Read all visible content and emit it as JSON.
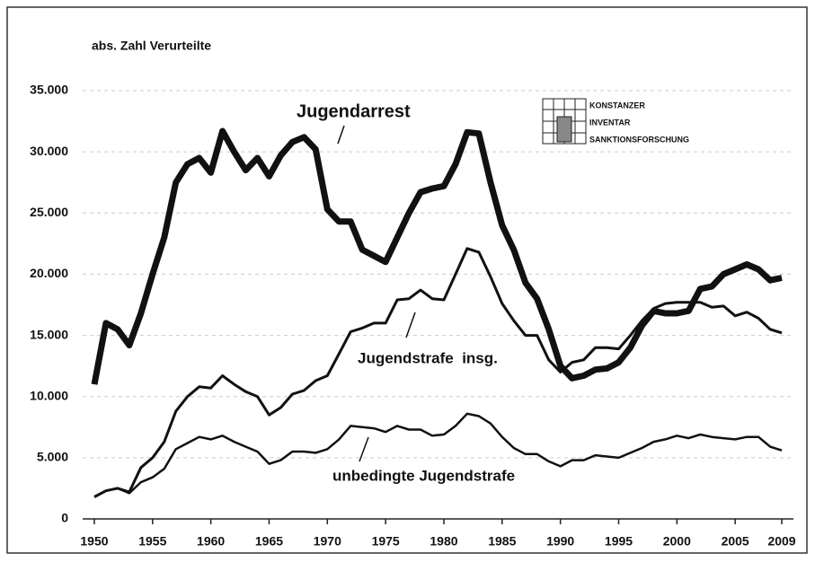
{
  "chart_data": {
    "type": "line",
    "y_label": "abs. Zahl Verurteilte",
    "logo": [
      "Konstanzer",
      "Inventar",
      "Sanktionsforschung"
    ],
    "x": [
      1950,
      1951,
      1952,
      1953,
      1954,
      1955,
      1956,
      1957,
      1958,
      1959,
      1960,
      1961,
      1962,
      1963,
      1964,
      1965,
      1966,
      1967,
      1968,
      1969,
      1970,
      1971,
      1972,
      1973,
      1974,
      1975,
      1976,
      1977,
      1978,
      1979,
      1980,
      1981,
      1982,
      1983,
      1984,
      1985,
      1986,
      1987,
      1988,
      1989,
      1990,
      1991,
      1992,
      1993,
      1994,
      1995,
      1996,
      1997,
      1998,
      1999,
      2000,
      2001,
      2002,
      2003,
      2004,
      2005,
      2006,
      2007,
      2008,
      2009
    ],
    "series": [
      {
        "name": "Jugendarrest",
        "color": "#111111",
        "values": [
          11000,
          16000,
          15500,
          14200,
          16800,
          20000,
          23000,
          27500,
          29000,
          29500,
          28300,
          31700,
          30000,
          28500,
          29500,
          28000,
          29700,
          30800,
          31200,
          30200,
          25300,
          24300,
          24300,
          22000,
          21500,
          21000,
          23000,
          25000,
          26700,
          27000,
          27200,
          29000,
          31600,
          31500,
          27500,
          24000,
          22000,
          19300,
          18000,
          15500,
          12500,
          11500,
          11700,
          12200,
          12300,
          12800,
          14000,
          15800,
          17000,
          16800,
          16800,
          17000,
          18800,
          19000,
          20000,
          20400,
          20800,
          20400,
          19500,
          19700
        ]
      },
      {
        "name": "Jugendstrafe  insg.",
        "color": "#111111",
        "values": [
          1800,
          2300,
          2500,
          2200,
          4200,
          5000,
          6300,
          8800,
          10000,
          10800,
          10700,
          11700,
          11000,
          10400,
          10000,
          8500,
          9100,
          10200,
          10500,
          11300,
          11700,
          13500,
          15300,
          15600,
          16000,
          16000,
          17900,
          18000,
          18700,
          18000,
          17900,
          20000,
          22100,
          21800,
          19800,
          17600,
          16200,
          15000,
          15000,
          13000,
          12000,
          12800,
          13000,
          14000,
          14000,
          13900,
          15000,
          16200,
          17200,
          17600,
          17700,
          17700,
          17700,
          17300,
          17400,
          16600,
          16900,
          16400,
          15500,
          15200
        ]
      },
      {
        "name": "unbedingte Jugendstrafe",
        "color": "#111111",
        "values": [
          1800,
          2300,
          2500,
          2100,
          3000,
          3400,
          4100,
          5700,
          6200,
          6700,
          6500,
          6800,
          6300,
          5900,
          5500,
          4500,
          4800,
          5500,
          5500,
          5400,
          5700,
          6500,
          7600,
          7500,
          7400,
          7100,
          7600,
          7300,
          7300,
          6800,
          6900,
          7600,
          8600,
          8400,
          7800,
          6700,
          5800,
          5300,
          5300,
          4700,
          4300,
          4800,
          4800,
          5200,
          5100,
          5000,
          5400,
          5800,
          6300,
          6500,
          6800,
          6600,
          6900,
          6700,
          6600,
          6500,
          6700,
          6700,
          5900,
          5600
        ]
      }
    ],
    "xlim": [
      1949,
      2010
    ],
    "xticks": [
      1950,
      1955,
      1960,
      1965,
      1970,
      1975,
      1980,
      1985,
      1990,
      1995,
      2000,
      2005,
      2009
    ],
    "ylim": [
      0,
      35000
    ],
    "yticks": [
      0,
      {
        "value": 5000,
        "label": "5.000"
      },
      {
        "value": 10000,
        "label": "10.000"
      },
      {
        "value": 15000,
        "label": "15.000"
      },
      {
        "value": 20000,
        "label": "20.000"
      },
      {
        "value": 25000,
        "label": "25.000"
      },
      {
        "value": 30000,
        "label": "30.000"
      },
      {
        "value": 35000,
        "label": "35.000"
      }
    ],
    "grid": true
  }
}
